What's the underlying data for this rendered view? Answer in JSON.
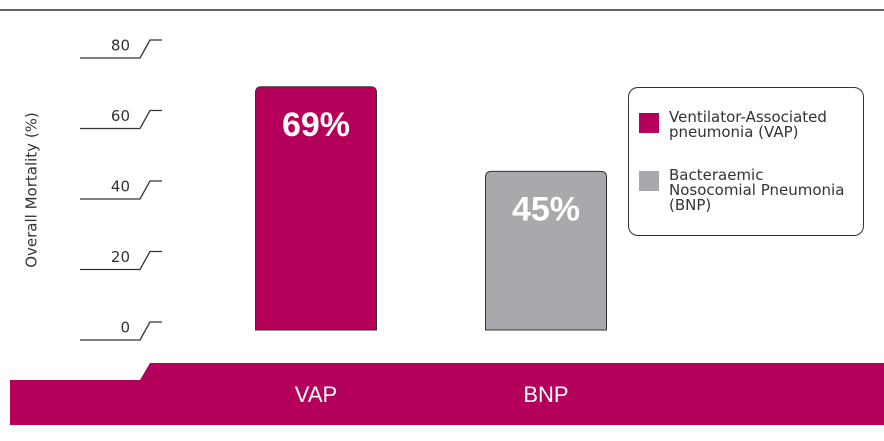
{
  "chart_data": {
    "type": "bar",
    "y_label": "Overall Mortality (%)",
    "categories": [
      "VAP",
      "BNP"
    ],
    "series": [
      {
        "name": "Ventilator-Associated pneumonia (VAP)",
        "color": "#b5005b",
        "values": [
          69,
          null
        ],
        "value_labels": [
          "69%",
          null
        ]
      },
      {
        "name": "Bacteraemic Nosocomial Pneumonia (BNP)",
        "color": "#a7a9ac",
        "values": [
          null,
          45
        ],
        "value_labels": [
          null,
          "45%"
        ]
      }
    ],
    "ylim": [
      0,
      80
    ],
    "yticks": [
      0,
      20,
      40,
      60,
      80
    ],
    "band_color": "#b5005b"
  }
}
